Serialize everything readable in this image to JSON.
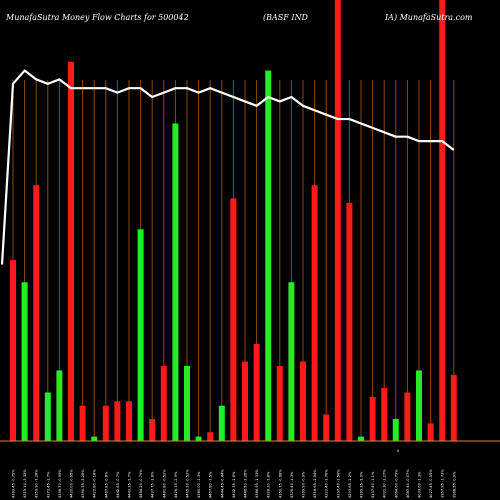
{
  "header": {
    "left": "MunafaSutra  Money Flow  Charts for 500042",
    "middle": "(BASF IND",
    "right": "IA) MunafaSutra.com"
  },
  "chart_data": {
    "type": "bar",
    "bar_ylim": [
      0,
      100
    ],
    "line_ylim": [
      0,
      100
    ],
    "categories": [
      "4183.45 -0.75%",
      "4215.10 -3.32%",
      "4359.90 -1.28%",
      "4373.45 -1.7%",
      "4358.70 -0.95%",
      "4420.00 -0.95%",
      "4390.55 -3.28%",
      "4422.80 -0.18%",
      "4467.85 -0.8%",
      "4442.65 -0.7%",
      "4443.35 -1.7%",
      "4464.20 -0.79%",
      "4437.75 -1.8%",
      "4481.80 -0.52%",
      "4426.35 -2.9%",
      "4405.30 -0.52%",
      "4380.00 -1.3%",
      "4467.80 -1.5%",
      "4444.45 -0.44%",
      "4402.35 -1.6%",
      "4446.50 -1.26%",
      "4386.95 -1.33%",
      "4328.20 -1.8%",
      "4350.75 -0.68%",
      "4376.40 -1.3%",
      "4399.90 -0.9%",
      "4318.65 -1.54%",
      "4222.40 -1.76%",
      "4197.40 -1.56%",
      "4203.65 -1.2%",
      "4169.35 -1.9%",
      "4137.40 -1.1%",
      "4091.30 -1.27%",
      "4064.60 -0.79%",
      "4087.40 -0.07%",
      "4033.60 -1.3%",
      "4027.45 -0.55%",
      "3957.95 -1.73%",
      "3968.55 -0.9%"
    ],
    "values": [
      41,
      36,
      58,
      11,
      16,
      86,
      8,
      1,
      8,
      9,
      9,
      48,
      5,
      17,
      72,
      17,
      1,
      2,
      8,
      55,
      18,
      22,
      84,
      17,
      36,
      18,
      58,
      6,
      100,
      54,
      1,
      10,
      12,
      5,
      11,
      16,
      4,
      100,
      15
    ],
    "colors": [
      "red",
      "green",
      "red",
      "green",
      "green",
      "red",
      "red",
      "green",
      "red",
      "red",
      "red",
      "green",
      "red",
      "red",
      "green",
      "green",
      "green",
      "red",
      "green",
      "red",
      "red",
      "red",
      "green",
      "red",
      "green",
      "red",
      "red",
      "red",
      "red",
      "red",
      "green",
      "red",
      "red",
      "green",
      "red",
      "green",
      "red",
      "red",
      "red"
    ],
    "line": [
      81,
      84,
      82,
      81,
      82,
      80,
      80,
      80,
      80,
      79,
      80,
      80,
      78,
      79,
      80,
      80,
      79,
      80,
      79,
      78,
      77,
      76,
      78,
      77,
      78,
      76,
      75,
      74,
      73,
      73,
      72,
      71,
      70,
      69,
      69,
      68,
      68,
      68,
      66
    ],
    "line_start": 40,
    "series": [
      {
        "name": "",
        "color": "#ff0000"
      },
      {
        "name": "",
        "color": "#00ff00"
      }
    ],
    "grid": true,
    "bottom_marker": "0"
  }
}
